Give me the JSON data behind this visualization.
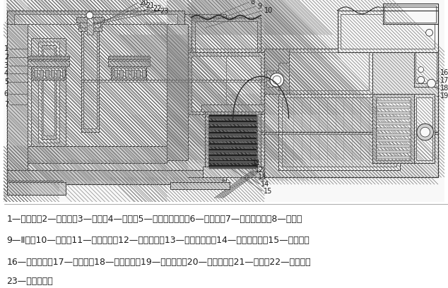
{
  "background_color": "#ffffff",
  "caption_lines": [
    "1—工作台；2—齿圈座；3—齿圈；4—压环；5—交叉滚子轴承；6—法兰盘；7—工作台底座；8—齿轮；",
    "9—Ⅱ轴；10—立柱；11—联组皮带；12—大皮带轮；13—卸荷法兰盘；14—深沟球轴承；15—花键套；",
    "16—主电动机；17—减速器；18—电动机座；19—小皮带轮；20—上法兰盘；21—小轴；22—编码器；",
    "23—下法兰盘。"
  ],
  "caption_fontsize": 9.0,
  "line_color": "#2a2a2a",
  "text_color": "#1a1a1a",
  "hatch_color": "#555555",
  "light_gray": "#e8e8e8",
  "mid_gray": "#d0d0d0",
  "dark_gray": "#b0b0b0",
  "white": "#f8f8f8"
}
